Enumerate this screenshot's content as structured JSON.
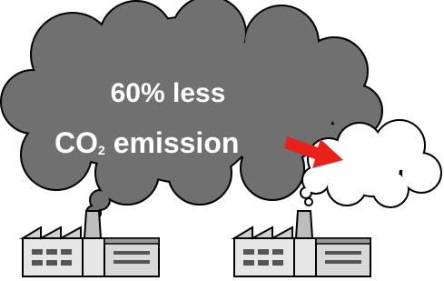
{
  "headline": "60% less",
  "line2": {
    "main": "CO",
    "sub": "2",
    "rest": " emission"
  }
}
